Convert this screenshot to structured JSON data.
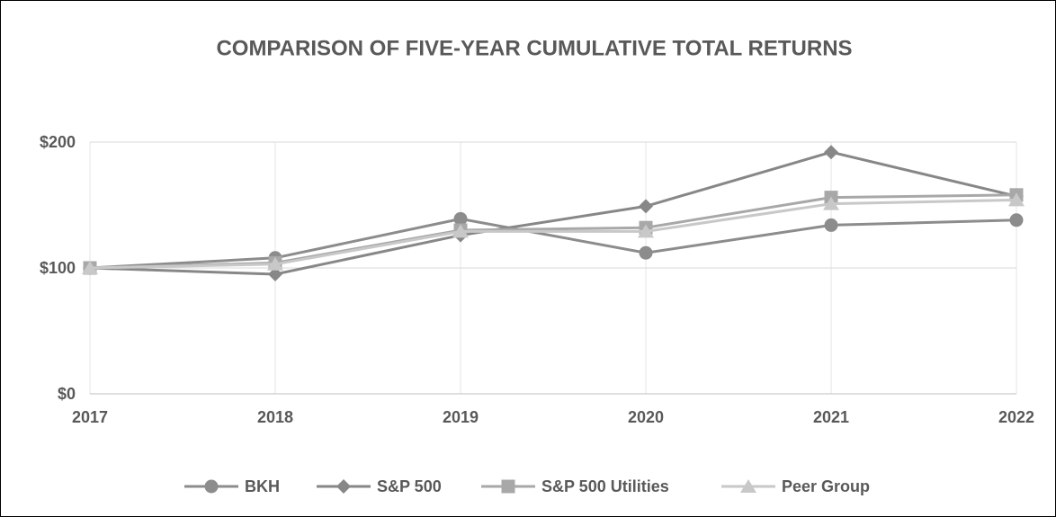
{
  "chart_data": {
    "type": "line",
    "title": "COMPARISON OF FIVE-YEAR CUMULATIVE TOTAL RETURNS",
    "categories": [
      "2017",
      "2018",
      "2019",
      "2020",
      "2021",
      "2022"
    ],
    "series": [
      {
        "name": "BKH",
        "color": "#8c8c8c",
        "marker": "circle",
        "values": [
          100,
          108,
          139,
          112,
          134,
          138
        ]
      },
      {
        "name": "S&P 500",
        "color": "#878787",
        "marker": "diamond",
        "values": [
          100,
          95,
          126,
          149,
          192,
          157
        ]
      },
      {
        "name": "S&P 500 Utilities",
        "color": "#a8a8a8",
        "marker": "square",
        "values": [
          100,
          104,
          130,
          132,
          156,
          158
        ]
      },
      {
        "name": "Peer Group",
        "color": "#c8c8c8",
        "marker": "triangle",
        "values": [
          100,
          103,
          129,
          129,
          151,
          154
        ]
      }
    ],
    "ylim": [
      0,
      200
    ],
    "yticks": [
      {
        "value": 0,
        "label": "$0"
      },
      {
        "value": 100,
        "label": "$100"
      },
      {
        "value": 200,
        "label": "$200"
      }
    ],
    "grid": true,
    "legend": "bottom"
  }
}
